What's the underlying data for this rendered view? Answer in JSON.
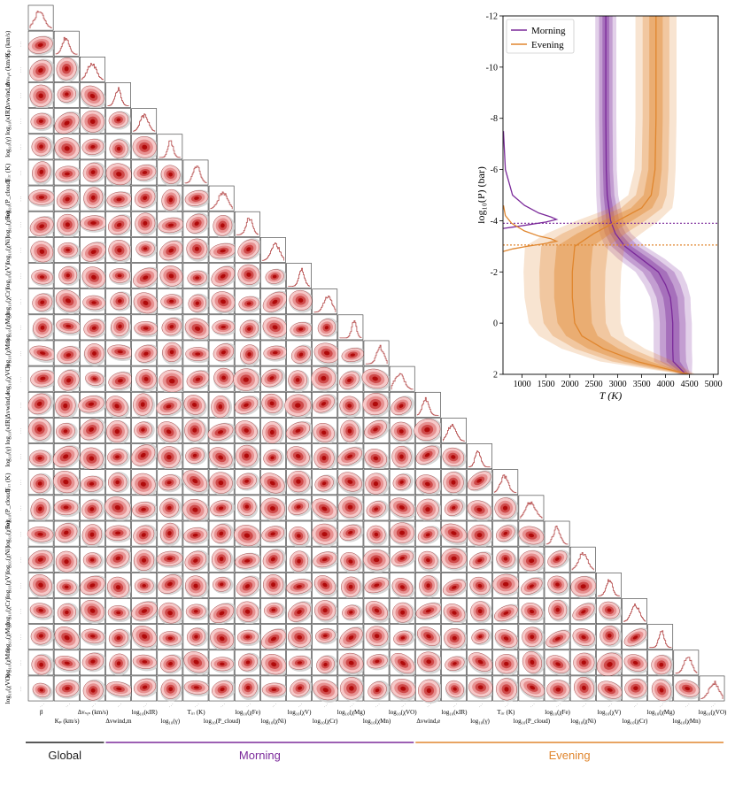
{
  "chart_data": [
    {
      "type": "corner",
      "title": "",
      "parameters": [
        "β",
        "K_p (km/s)",
        "Δv_sys (km/s)",
        "Δv_wind,m",
        "log10(κ_IR)",
        "log10(γ)",
        "T_irr (K)",
        "log10(P_cloud)",
        "log10(χ_Fe)",
        "log10(χ_Ni)",
        "log10(χ_V)",
        "log10(χ_Cr)",
        "log10(χ_Mg)",
        "log10(χ_Mn)",
        "log10(χ_VO)",
        "Δv_wind,e",
        "log10(κ_IR)",
        "log10(γ)",
        "T_irr (K)",
        "log10(P_cloud)",
        "log10(χ_Fe)",
        "log10(χ_Ni)",
        "log10(χ_V)",
        "log10(χ_Cr)",
        "log10(χ_Mg)",
        "log10(χ_Mn)",
        "log10(χ_VO)"
      ],
      "left_labels": [
        "K_p (km/s)",
        "Δv_sys (km/s)",
        "Δv_wind,m",
        "log10(κ_IR)",
        "log10(γ)",
        "T_irr (K)",
        "log10(P_cloud)",
        "log10(χ_Fe)",
        "log10(χ_Ni)",
        "log10(χ_V)",
        "log10(χ_Cr)",
        "log10(χ_Mg)",
        "log10(χ_Mn)",
        "log10(χ_VO)",
        "Δv_wind,e",
        "log10(κ_IR)",
        "log10(γ)",
        "T_irr (K)",
        "log10(P_cloud)",
        "log10(χ_Fe)",
        "log10(χ_Ni)",
        "log10(χ_V)",
        "log10(χ_Cr)",
        "log10(χ_Mg)",
        "log10(χ_Mn)",
        "log10(χ_VO)"
      ],
      "bottom_labels": [
        "β",
        "K_p (km/s)",
        "Δv_sys (km/s)",
        "Δv_wind,m",
        "log10(κ_IR)",
        "log10(γ)",
        "T_irr (K)",
        "log10(P_cloud)",
        "log10(χ_Fe)",
        "log10(χ_Ni)",
        "log10(χ_V)",
        "log10(χ_Cr)",
        "log10(χ_Mg)",
        "log10(χ_Mn)",
        "log10(χ_VO)",
        "Δv_wind,e",
        "log10(κ_IR)",
        "log10(γ)",
        "T_irr (K)",
        "log10(P_cloud)",
        "log10(χ_Fe)",
        "log10(χ_Ni)",
        "log10(χ_V)",
        "log10(χ_Cr)",
        "log10(χ_Mg)",
        "log10(χ_Mn)",
        "log10(χ_VO)"
      ],
      "groups": [
        {
          "name": "Global",
          "color": "#222222",
          "param_range": [
            0,
            2
          ]
        },
        {
          "name": "Morning",
          "color": "#7b2a9a",
          "param_range": [
            3,
            14
          ]
        },
        {
          "name": "Evening",
          "color": "#e0862e",
          "param_range": [
            15,
            26
          ]
        }
      ],
      "fill_colors": [
        "#f6c9c9",
        "#e79191",
        "#cf4a4a",
        "#b00a0a"
      ],
      "prior_color": "#cfcfcf"
    },
    {
      "type": "line",
      "title": "",
      "xlabel": "T (K)",
      "ylabel": "log10(P) (bar)",
      "xlim": [
        600,
        5100
      ],
      "ylim": [
        2,
        -12
      ],
      "xticks": [
        1000,
        1500,
        2000,
        2500,
        3000,
        3500,
        4000,
        4500,
        5000
      ],
      "yticks": [
        2,
        0,
        -2,
        -4,
        -6,
        -8,
        -10,
        -12
      ],
      "legend": [
        "Morning",
        "Evening"
      ],
      "legend_position": "top-left",
      "series": [
        {
          "name": "Morning",
          "color": "#7b2a9a",
          "logP": [
            -12,
            -10,
            -8,
            -6,
            -5,
            -4,
            -3.5,
            -3,
            -2.5,
            -2,
            -1.5,
            -1,
            -0.5,
            0,
            0.5,
            1,
            1.5,
            2
          ],
          "median": [
            2750,
            2750,
            2750,
            2760,
            2780,
            2850,
            2950,
            3150,
            3500,
            3850,
            4000,
            4100,
            4130,
            4150,
            4150,
            4150,
            4160,
            4420
          ],
          "sigma1_half": [
            70,
            70,
            70,
            70,
            75,
            90,
            110,
            140,
            170,
            170,
            160,
            150,
            140,
            140,
            140,
            140,
            140,
            60
          ],
          "sigma2_half": [
            140,
            140,
            140,
            140,
            150,
            180,
            220,
            280,
            330,
            330,
            310,
            290,
            270,
            270,
            270,
            270,
            270,
            90
          ],
          "sigma3_half": [
            220,
            220,
            220,
            220,
            230,
            270,
            330,
            420,
            490,
            480,
            450,
            420,
            400,
            400,
            400,
            400,
            400,
            130
          ],
          "contribution": {
            "logP": [
              -7.5,
              -6,
              -5,
              -4.6,
              -4.3,
              -4.15,
              -4.05,
              -3.95,
              -3.85,
              -3.75,
              -3.7
            ],
            "T": [
              610,
              650,
              800,
              1050,
              1350,
              1600,
              1720,
              1500,
              1150,
              800,
              610
            ]
          },
          "reference_logP": -3.9
        },
        {
          "name": "Evening",
          "color": "#e0862e",
          "logP": [
            -12,
            -10,
            -8,
            -6,
            -5,
            -4.5,
            -4,
            -3.5,
            -3,
            -2,
            -1,
            0,
            0.5,
            1,
            1.5,
            2
          ],
          "median": [
            3800,
            3800,
            3800,
            3780,
            3700,
            3500,
            3000,
            2500,
            2100,
            2050,
            2050,
            2100,
            2250,
            2700,
            3400,
            4480
          ],
          "sigma1_half": [
            140,
            140,
            140,
            140,
            160,
            220,
            300,
            350,
            380,
            380,
            380,
            360,
            330,
            320,
            280,
            60
          ],
          "sigma2_half": [
            280,
            280,
            280,
            280,
            320,
            430,
            580,
            660,
            700,
            690,
            680,
            650,
            610,
            590,
            520,
            100
          ],
          "sigma3_half": [
            430,
            430,
            430,
            430,
            480,
            640,
            860,
            990,
            1040,
            1020,
            1000,
            960,
            900,
            870,
            770,
            140
          ],
          "contribution": {
            "logP": [
              -4.6,
              -4.2,
              -3.9,
              -3.6,
              -3.4,
              -3.3,
              -3.2,
              -3.1,
              -3.0,
              -2.9,
              -2.8
            ],
            "T": [
              610,
              650,
              780,
              1050,
              1350,
              1600,
              1720,
              1450,
              1100,
              800,
              610
            ]
          },
          "reference_logP": -3.05
        }
      ]
    }
  ]
}
